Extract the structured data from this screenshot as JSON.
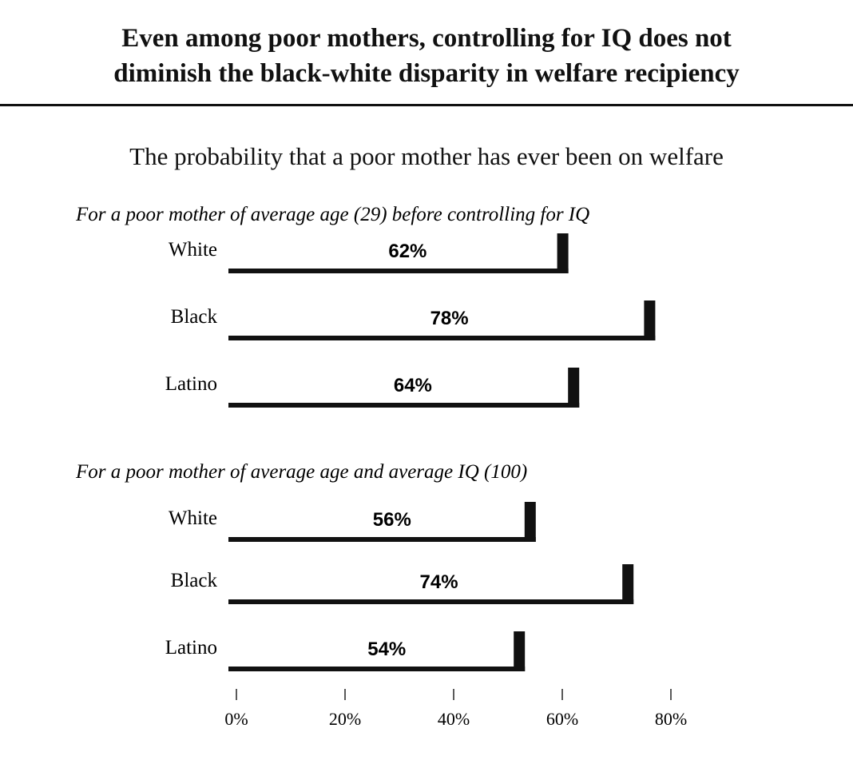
{
  "title_lines": [
    "Even among poor mothers, controlling for IQ does not",
    "diminish the black-white disparity in welfare recipiency"
  ],
  "subtitle": "The probability that a poor mother has ever been on welfare",
  "colors": {
    "bar": "#111111",
    "bar_face": "#ffffff"
  },
  "chart_data": {
    "type": "bar",
    "orientation": "horizontal",
    "title": "Even among poor mothers, controlling for IQ does not diminish the black-white disparity in welfare recipiency",
    "subtitle": "The probability that a poor mother has ever been on welfare",
    "xlim": [
      0,
      80
    ],
    "ticks": [
      0,
      20,
      40,
      60,
      80
    ],
    "tick_labels": [
      "0%",
      "20%",
      "40%",
      "60%",
      "80%"
    ],
    "grid": false,
    "panels": [
      {
        "title": "For a poor mother of average age (29) before controlling for IQ",
        "categories": [
          "White",
          "Black",
          "Latino"
        ],
        "values": [
          62,
          78,
          64
        ],
        "labels": [
          "62%",
          "78%",
          "64%"
        ]
      },
      {
        "title": "For a poor mother of average age and average IQ (100)",
        "categories": [
          "White",
          "Black",
          "Latino"
        ],
        "values": [
          56,
          74,
          54
        ],
        "labels": [
          "56%",
          "74%",
          "54%"
        ]
      }
    ]
  }
}
